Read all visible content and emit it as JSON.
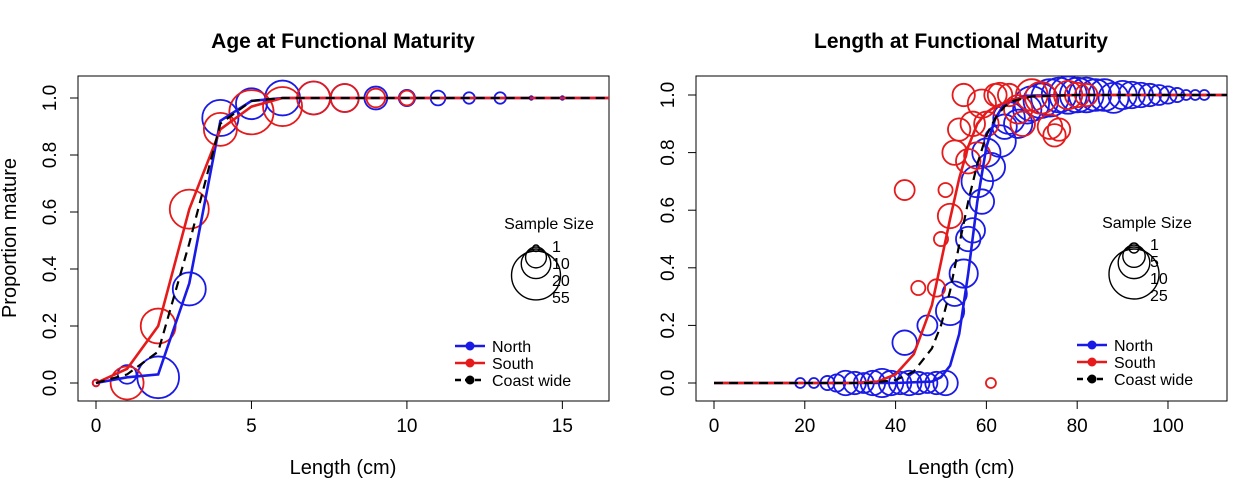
{
  "colors": {
    "north": "#1a1ae6",
    "south": "#e61a1a",
    "coast": "#000000"
  },
  "chart_data": [
    {
      "type": "scatter",
      "title": "Age at Functional Maturity",
      "xlabel": "Length (cm)",
      "ylabel": "Proportion mature",
      "xlim": [
        0,
        16.5
      ],
      "ylim": [
        0,
        1
      ],
      "xticks": [
        "0",
        "5",
        "10",
        "15"
      ],
      "yticks": [
        "0.0",
        "0.2",
        "0.4",
        "0.6",
        "0.8",
        "1.0"
      ],
      "grid": false,
      "legend": {
        "position": "bottom-right",
        "entries": [
          {
            "key": "north",
            "label": "North",
            "style": "solid"
          },
          {
            "key": "south",
            "label": "South",
            "style": "solid"
          },
          {
            "key": "coast",
            "label": "Coast wide",
            "style": "dashed"
          }
        ]
      },
      "size_legend": {
        "title": "Sample Size",
        "labels": [
          "1",
          "10",
          "20",
          "55"
        ],
        "values": [
          1,
          10,
          20,
          55
        ]
      },
      "series": [
        {
          "name": "North",
          "key": "north",
          "points": [
            [
              0,
              0,
              1
            ],
            [
              1,
              0.03,
              8
            ],
            [
              2,
              0.02,
              40
            ],
            [
              3,
              0.33,
              25
            ],
            [
              4,
              0.93,
              30
            ],
            [
              5,
              0.98,
              22
            ],
            [
              6,
              1,
              28
            ],
            [
              7,
              1,
              25
            ],
            [
              8,
              1,
              18
            ],
            [
              9,
              1,
              12
            ],
            [
              10,
              1,
              6
            ],
            [
              11,
              1,
              5
            ],
            [
              12,
              1,
              3
            ],
            [
              13,
              1,
              3
            ],
            [
              14,
              1,
              0.3
            ],
            [
              15,
              1,
              0.3
            ]
          ],
          "curve": [
            [
              0,
              0
            ],
            [
              1,
              0.02
            ],
            [
              2,
              0.03
            ],
            [
              3,
              0.35
            ],
            [
              4,
              0.92
            ],
            [
              5,
              0.99
            ],
            [
              6,
              1
            ],
            [
              7,
              1
            ],
            [
              8,
              1
            ],
            [
              9,
              1
            ],
            [
              10,
              1
            ],
            [
              11,
              1
            ],
            [
              12,
              1
            ],
            [
              13,
              1
            ],
            [
              14,
              1
            ],
            [
              15,
              1
            ],
            [
              16.5,
              1
            ]
          ]
        },
        {
          "name": "South",
          "key": "south",
          "points": [
            [
              0,
              0,
              1
            ],
            [
              1,
              0,
              25
            ],
            [
              2,
              0.2,
              28
            ],
            [
              3,
              0.61,
              35
            ],
            [
              4,
              0.89,
              25
            ],
            [
              5,
              0.95,
              45
            ],
            [
              6,
              0.97,
              35
            ],
            [
              7,
              1,
              25
            ],
            [
              8,
              1,
              18
            ],
            [
              9,
              1,
              8
            ],
            [
              10,
              1,
              5
            ]
          ],
          "curve": [
            [
              0,
              0
            ],
            [
              1,
              0.05
            ],
            [
              2,
              0.2
            ],
            [
              3,
              0.61
            ],
            [
              4,
              0.89
            ],
            [
              5,
              0.97
            ],
            [
              6,
              1
            ],
            [
              7,
              1
            ],
            [
              8,
              1
            ],
            [
              9,
              1
            ],
            [
              10,
              1
            ],
            [
              11,
              1
            ],
            [
              12,
              1
            ],
            [
              13,
              1
            ],
            [
              14,
              1
            ],
            [
              15,
              1
            ],
            [
              16.5,
              1
            ]
          ]
        },
        {
          "name": "Coast wide",
          "key": "coast",
          "points": [],
          "curve": [
            [
              0,
              0
            ],
            [
              1,
              0.03
            ],
            [
              2,
              0.11
            ],
            [
              3,
              0.49
            ],
            [
              4,
              0.91
            ],
            [
              5,
              0.99
            ],
            [
              6,
              1
            ],
            [
              7,
              1
            ],
            [
              8,
              1
            ],
            [
              9,
              1
            ],
            [
              10,
              1
            ],
            [
              11,
              1
            ],
            [
              12,
              1
            ],
            [
              13,
              1
            ],
            [
              14,
              1
            ],
            [
              15,
              1
            ],
            [
              16.5,
              1
            ]
          ]
        }
      ]
    },
    {
      "type": "scatter",
      "title": "Length at Functional Maturity",
      "xlabel": "Length (cm)",
      "ylabel": "",
      "xlim": [
        0,
        113
      ],
      "ylim": [
        0,
        1
      ],
      "xticks": [
        "0",
        "20",
        "40",
        "60",
        "80",
        "100"
      ],
      "yticks": [
        "0.0",
        "0.2",
        "0.4",
        "0.6",
        "0.8",
        "1.0"
      ],
      "grid": false,
      "legend": {
        "position": "bottom-right",
        "entries": [
          {
            "key": "north",
            "label": "North",
            "style": "solid"
          },
          {
            "key": "south",
            "label": "South",
            "style": "solid"
          },
          {
            "key": "coast",
            "label": "Coast wide",
            "style": "dashed"
          }
        ]
      },
      "size_legend": {
        "title": "Sample Size",
        "labels": [
          "1",
          "5",
          "10",
          "25"
        ],
        "values": [
          1,
          5,
          10,
          25
        ]
      },
      "series": [
        {
          "name": "North",
          "key": "north",
          "points": [
            [
              19,
              0,
              1
            ],
            [
              22,
              0,
              1
            ],
            [
              25,
              0,
              2
            ],
            [
              27,
              0,
              3
            ],
            [
              29,
              0,
              6
            ],
            [
              31,
              0,
              5
            ],
            [
              33,
              0,
              4
            ],
            [
              35,
              0,
              6
            ],
            [
              37,
              0,
              8
            ],
            [
              39,
              0,
              6
            ],
            [
              41,
              0,
              5
            ],
            [
              43,
              0,
              6
            ],
            [
              45,
              0,
              5
            ],
            [
              47,
              0,
              4
            ],
            [
              49,
              0,
              5
            ],
            [
              51,
              0,
              6
            ],
            [
              42,
              0.14,
              6
            ],
            [
              47,
              0.2,
              4
            ],
            [
              52,
              0.25,
              8
            ],
            [
              53,
              0.31,
              6
            ],
            [
              55,
              0.38,
              8
            ],
            [
              56,
              0.5,
              6
            ],
            [
              57,
              0.53,
              6
            ],
            [
              58,
              0.7,
              10
            ],
            [
              59,
              0.63,
              6
            ],
            [
              60,
              0.8,
              8
            ],
            [
              61,
              0.75,
              8
            ],
            [
              63,
              0.84,
              10
            ],
            [
              64,
              0.89,
              6
            ],
            [
              65,
              0.92,
              10
            ],
            [
              67,
              0.9,
              8
            ],
            [
              69,
              0.95,
              8
            ],
            [
              70,
              0.97,
              12
            ],
            [
              72,
              0.98,
              12
            ],
            [
              74,
              0.99,
              14
            ],
            [
              76,
              1,
              12
            ],
            [
              78,
              1,
              14
            ],
            [
              80,
              1,
              12
            ],
            [
              82,
              1,
              12
            ],
            [
              84,
              1,
              10
            ],
            [
              86,
              1,
              10
            ],
            [
              88,
              0.99,
              9
            ],
            [
              90,
              1,
              8
            ],
            [
              92,
              1,
              7
            ],
            [
              94,
              1,
              6
            ],
            [
              96,
              1,
              5
            ],
            [
              98,
              1,
              4
            ],
            [
              100,
              1,
              3
            ],
            [
              102,
              1,
              2
            ],
            [
              104,
              1,
              1
            ],
            [
              106,
              1,
              1
            ],
            [
              108,
              1,
              1
            ]
          ],
          "curve": [
            [
              0,
              0
            ],
            [
              40,
              0
            ],
            [
              48,
              0.005
            ],
            [
              50,
              0.02
            ],
            [
              52,
              0.06
            ],
            [
              54,
              0.17
            ],
            [
              56,
              0.38
            ],
            [
              58,
              0.63
            ],
            [
              60,
              0.82
            ],
            [
              62,
              0.92
            ],
            [
              64,
              0.97
            ],
            [
              66,
              0.985
            ],
            [
              70,
              0.998
            ],
            [
              80,
              1
            ],
            [
              113,
              1
            ]
          ]
        },
        {
          "name": "South",
          "key": "south",
          "points": [
            [
              42,
              0.67,
              4
            ],
            [
              45,
              0.33,
              2
            ],
            [
              49,
              0.33,
              3
            ],
            [
              50,
              0.5,
              2
            ],
            [
              51,
              0.67,
              2
            ],
            [
              52,
              0.58,
              6
            ],
            [
              53,
              0.8,
              6
            ],
            [
              54,
              0.88,
              5
            ],
            [
              55,
              1,
              5
            ],
            [
              56,
              0.77,
              6
            ],
            [
              57,
              0.9,
              6
            ],
            [
              58,
              0.79,
              7
            ],
            [
              59,
              0.97,
              8
            ],
            [
              60,
              0.9,
              6
            ],
            [
              61,
              0,
              1
            ],
            [
              62,
              1,
              5
            ],
            [
              63,
              1,
              6
            ],
            [
              65,
              1,
              5
            ],
            [
              67,
              0.95,
              8
            ],
            [
              68,
              0.9,
              6
            ],
            [
              70,
              1,
              10
            ],
            [
              72,
              0.99,
              10
            ],
            [
              74,
              0.89,
              6
            ],
            [
              75,
              0.86,
              5
            ],
            [
              76,
              0.88,
              5
            ],
            [
              78,
              1,
              8
            ],
            [
              80,
              1,
              6
            ],
            [
              82,
              1,
              5
            ]
          ],
          "curve": [
            [
              0,
              0
            ],
            [
              30,
              0
            ],
            [
              36,
              0.005
            ],
            [
              40,
              0.03
            ],
            [
              44,
              0.1
            ],
            [
              48,
              0.27
            ],
            [
              50,
              0.42
            ],
            [
              52,
              0.57
            ],
            [
              54,
              0.71
            ],
            [
              56,
              0.82
            ],
            [
              58,
              0.9
            ],
            [
              60,
              0.94
            ],
            [
              62,
              0.96
            ],
            [
              66,
              0.985
            ],
            [
              70,
              0.995
            ],
            [
              80,
              1
            ],
            [
              113,
              1
            ]
          ]
        },
        {
          "name": "Coast wide",
          "key": "coast",
          "points": [],
          "curve": [
            [
              0,
              0
            ],
            [
              34,
              0
            ],
            [
              40,
              0.01
            ],
            [
              44,
              0.04
            ],
            [
              48,
              0.12
            ],
            [
              50,
              0.2
            ],
            [
              52,
              0.32
            ],
            [
              54,
              0.48
            ],
            [
              56,
              0.63
            ],
            [
              58,
              0.76
            ],
            [
              60,
              0.86
            ],
            [
              62,
              0.92
            ],
            [
              64,
              0.96
            ],
            [
              66,
              0.98
            ],
            [
              70,
              0.995
            ],
            [
              80,
              1
            ],
            [
              113,
              1
            ]
          ]
        }
      ]
    }
  ]
}
